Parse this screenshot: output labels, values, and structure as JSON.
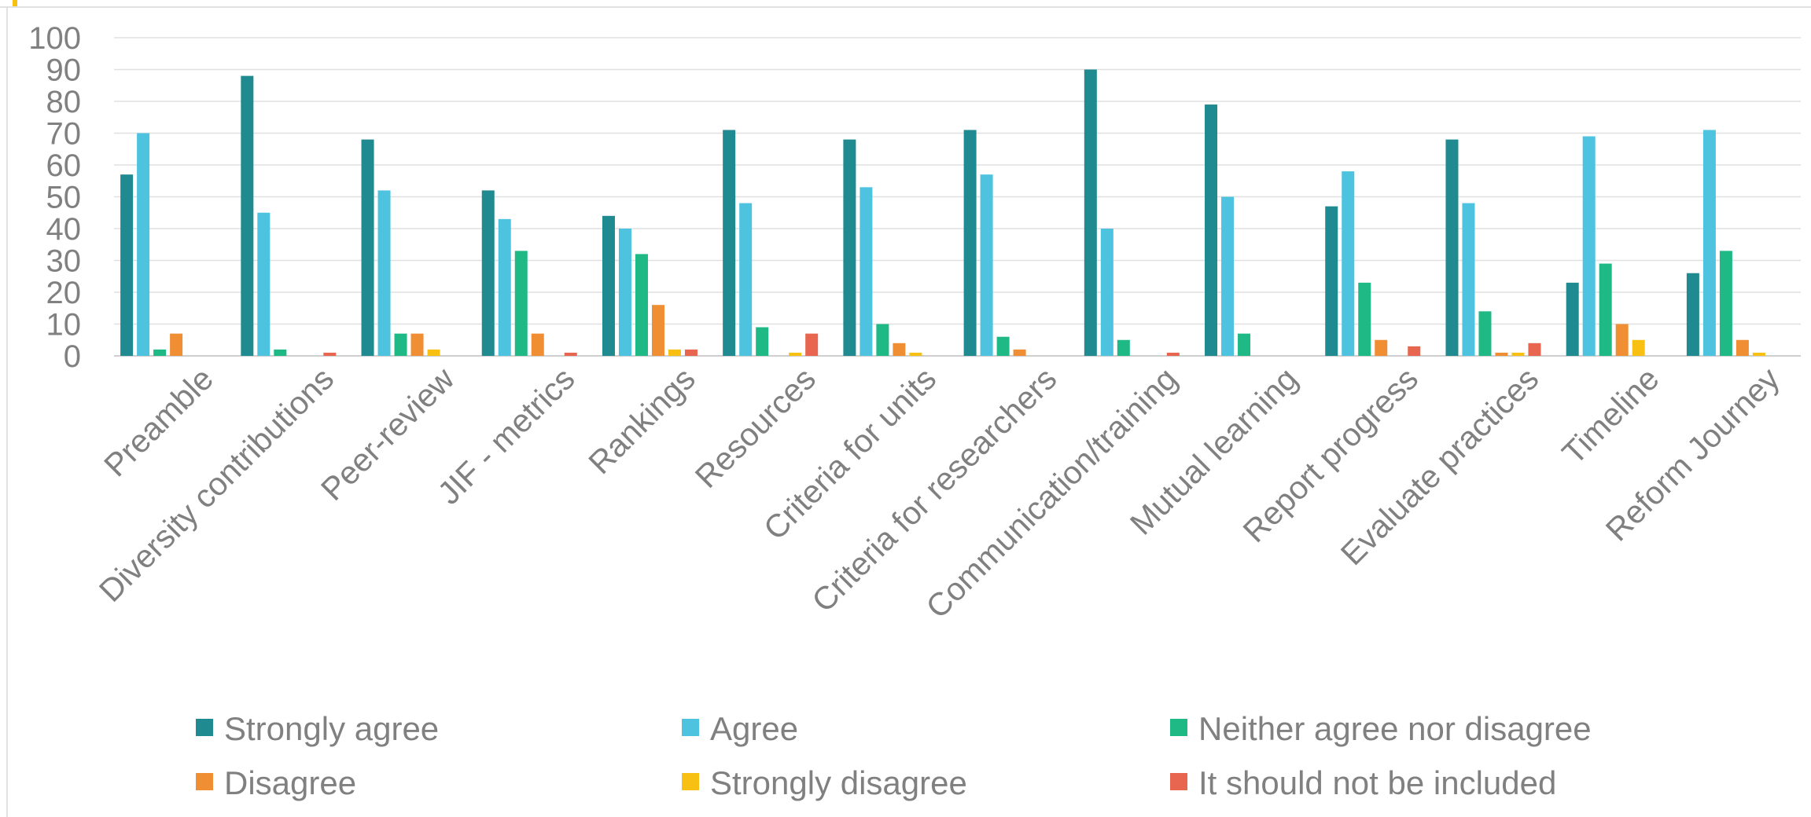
{
  "chart_data": {
    "type": "bar",
    "title": "",
    "xlabel": "",
    "ylabel": "",
    "ylim": [
      0,
      100
    ],
    "yticks": [
      0,
      10,
      20,
      30,
      40,
      50,
      60,
      70,
      80,
      90,
      100
    ],
    "grid": true,
    "legend_position": "bottom",
    "categories": [
      "Preamble",
      "Diversity contributions",
      "Peer-review",
      "JIF - metrics",
      "Rankings",
      "Resources",
      "Criteria for units",
      "Criteria for researchers",
      "Communication/training",
      "Mutual learning",
      "Report progress",
      "Evaluate practices",
      "Timeline",
      "Reform Journey"
    ],
    "series": [
      {
        "name": "Strongly agree",
        "color": "#1F8A8F",
        "values": [
          57,
          88,
          68,
          52,
          44,
          71,
          68,
          71,
          90,
          79,
          47,
          68,
          23,
          26
        ]
      },
      {
        "name": "Agree",
        "color": "#4DC3DF",
        "values": [
          70,
          45,
          52,
          43,
          40,
          48,
          53,
          57,
          40,
          50,
          58,
          48,
          69,
          71
        ]
      },
      {
        "name": "Neither agree nor disagree",
        "color": "#1FB985",
        "values": [
          2,
          2,
          7,
          33,
          32,
          9,
          10,
          6,
          5,
          7,
          23,
          14,
          29,
          33
        ]
      },
      {
        "name": "Disagree",
        "color": "#F08E34",
        "values": [
          7,
          0,
          7,
          7,
          16,
          0,
          4,
          2,
          0,
          0,
          5,
          1,
          10,
          5
        ]
      },
      {
        "name": "Strongly disagree",
        "color": "#F8C012",
        "values": [
          0,
          0,
          2,
          0,
          2,
          1,
          1,
          0,
          0,
          0,
          0,
          1,
          5,
          1
        ]
      },
      {
        "name": "It should not be included",
        "color": "#E8664F",
        "values": [
          0,
          1,
          0,
          1,
          2,
          7,
          0,
          0,
          1,
          0,
          3,
          4,
          0,
          0
        ]
      }
    ]
  }
}
